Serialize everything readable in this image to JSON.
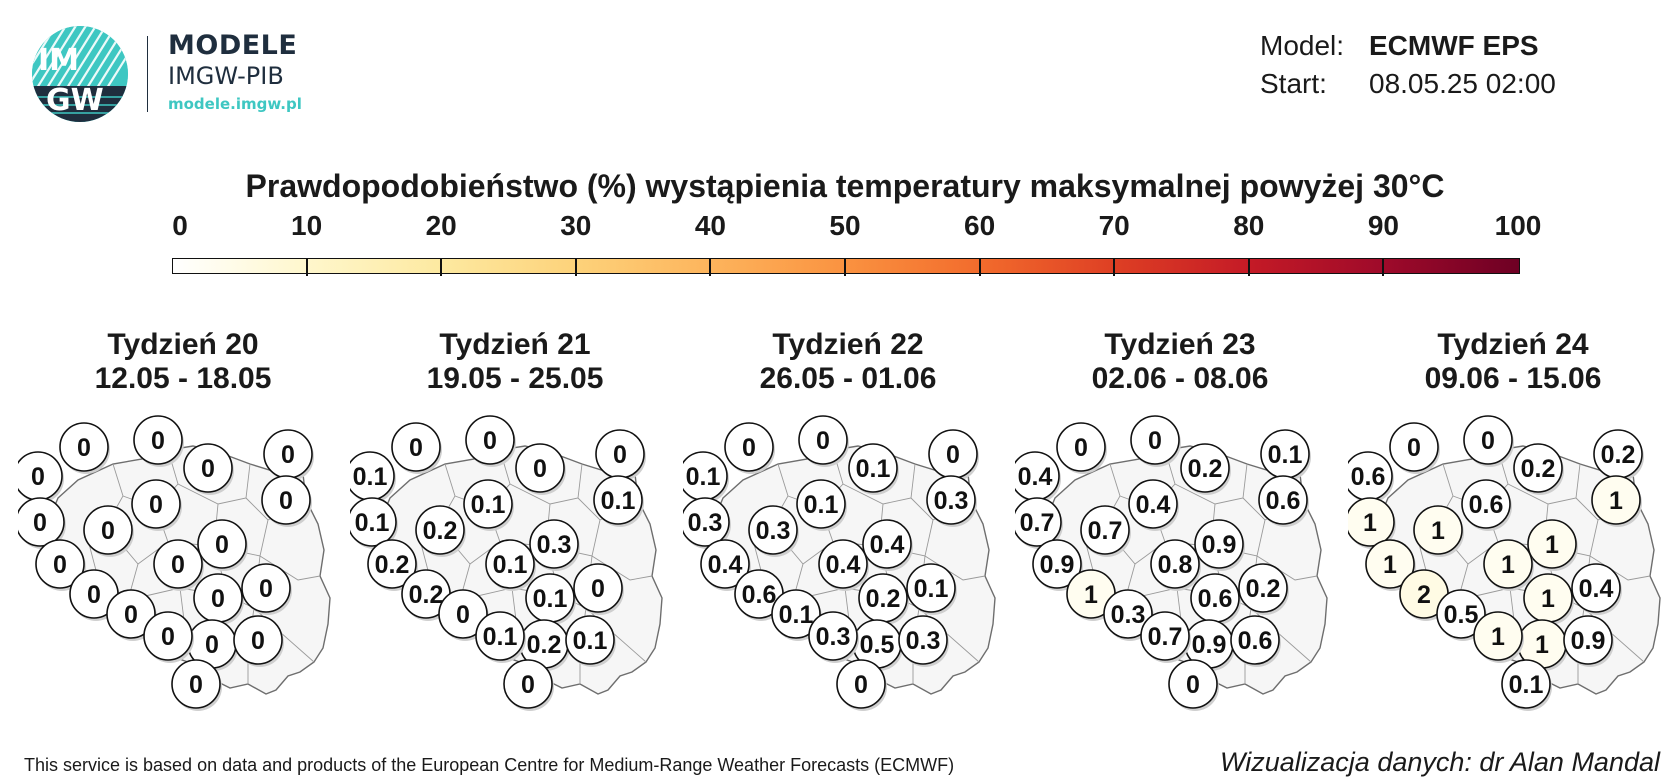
{
  "logo": {
    "mark": "IMGW",
    "title": "MODELE",
    "subtitle": "IMGW-PIB",
    "url": "modele.imgw.pl"
  },
  "meta": {
    "model_label": "Model:",
    "model_value": "ECMWF EPS",
    "start_label": "Start:",
    "start_value": "08.05.25 02:00"
  },
  "title": "Prawdopodobieństwo (%) wystąpienia temperatury maksymalnej powyżej 30°C",
  "colorbar": {
    "ticks": [
      "0",
      "10",
      "20",
      "30",
      "40",
      "50",
      "60",
      "70",
      "80",
      "90",
      "100"
    ],
    "colors": [
      "#ffffff",
      "#fff7cc",
      "#fde9a0",
      "#fdd27a",
      "#fdb45c",
      "#fa9240",
      "#f26b2c",
      "#de3f24",
      "#c41a26",
      "#9e0a2a",
      "#6e0024"
    ]
  },
  "panels": [
    {
      "week": "Tydzień 20",
      "dates": "12.05 - 18.05",
      "values": [
        "0",
        "0",
        "0",
        "0",
        "0",
        "0",
        "0",
        "0",
        "0",
        "0",
        "0",
        "0",
        "0",
        "0",
        "0",
        "0",
        "0",
        "0",
        "0",
        "0"
      ]
    },
    {
      "week": "Tydzień 21",
      "dates": "19.05 - 25.05",
      "values": [
        "0",
        "0",
        "0.1",
        "0",
        "0",
        "0.1",
        "0.1",
        "0.2",
        "0.1",
        "0.3",
        "0.2",
        "0.1",
        "0.1",
        "0.2",
        "0",
        "0",
        "0.2",
        "0.1",
        "0.1",
        "0"
      ]
    },
    {
      "week": "Tydzień 22",
      "dates": "26.05 - 01.06",
      "values": [
        "0",
        "0",
        "0.1",
        "0.1",
        "0",
        "0.3",
        "0.3",
        "0.3",
        "0.1",
        "0.4",
        "0.4",
        "0.4",
        "0.2",
        "0.6",
        "0.1",
        "0.1",
        "0.5",
        "0.3",
        "0.3",
        "0"
      ]
    },
    {
      "week": "Tydzień 23",
      "dates": "02.06 - 08.06",
      "values": [
        "0",
        "0",
        "0.4",
        "0.2",
        "0.1",
        "0.6",
        "0.7",
        "0.7",
        "0.4",
        "0.9",
        "0.9",
        "0.8",
        "0.6",
        "1",
        "0.3",
        "0.2",
        "0.9",
        "0.7",
        "0.6",
        "0"
      ]
    },
    {
      "week": "Tydzień 24",
      "dates": "09.06 - 15.06",
      "values": [
        "0",
        "0",
        "0.6",
        "0.2",
        "0.2",
        "1",
        "1",
        "1",
        "0.6",
        "1",
        "1",
        "1",
        "1",
        "2",
        "0.5",
        "0.4",
        "1",
        "1",
        "0.9",
        "0.1"
      ]
    }
  ],
  "footer": {
    "left": "This service is based on data and products of the European Centre for Medium-Range Weather Forecasts (ECMWF)",
    "right": "Wizualizacja danych: dr Alan Mandal"
  }
}
